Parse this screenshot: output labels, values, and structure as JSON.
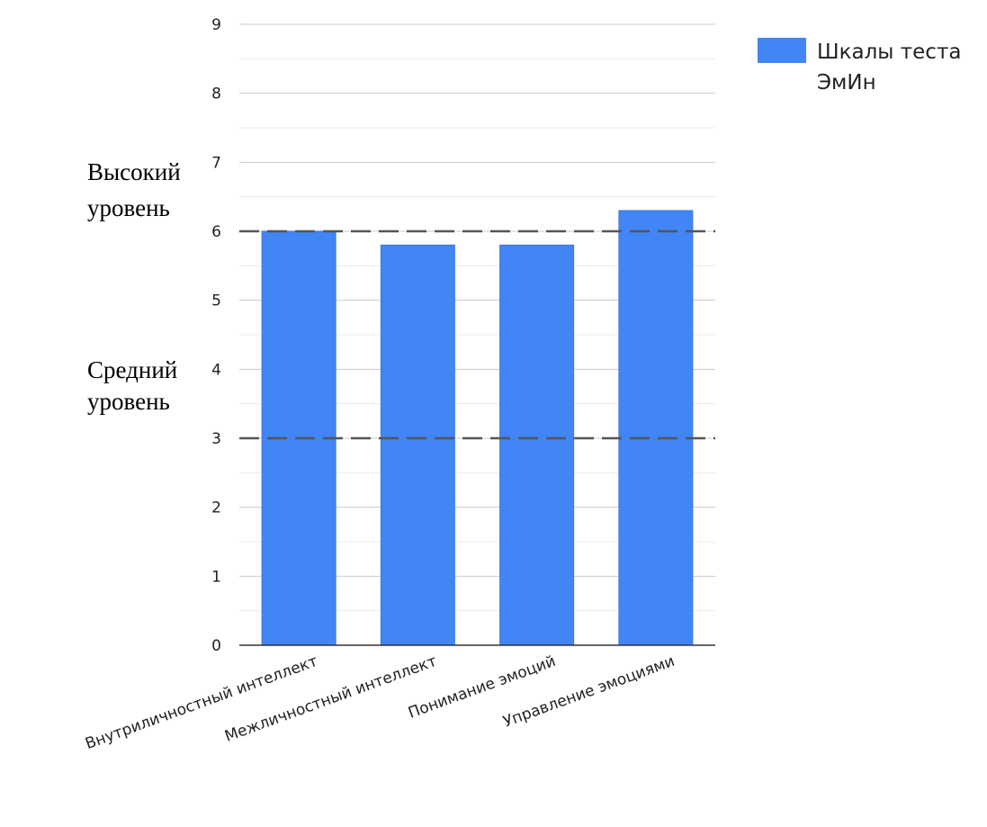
{
  "chart_data": {
    "type": "bar",
    "categories": [
      "Внутриличностный интеллект",
      "Межличностный интеллект",
      "Понимание эмоций",
      "Управление эмоциями"
    ],
    "series": [
      {
        "name": "Шкалы теста ЭмИн",
        "values": [
          6.0,
          5.8,
          5.8,
          6.3
        ],
        "color": "#4285f4"
      }
    ],
    "yticks": [
      0,
      1,
      2,
      3,
      4,
      5,
      6,
      7,
      8,
      9
    ],
    "ylim": [
      0,
      9
    ],
    "grid": true,
    "legend": {
      "position": "top-right",
      "lines": [
        "Шкалы теста",
        "ЭмИн"
      ]
    },
    "reference_lines": [
      {
        "value": 6,
        "style": "dashed"
      },
      {
        "value": 3,
        "style": "dashed"
      }
    ],
    "level_labels": [
      {
        "lines": [
          "Высокий",
          "уровень"
        ]
      },
      {
        "lines": [
          "Средний",
          "уровень"
        ]
      }
    ]
  }
}
